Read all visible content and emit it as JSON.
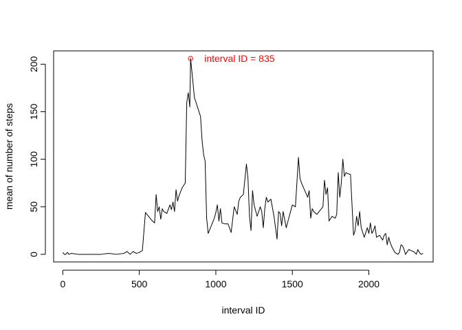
{
  "chart_data": {
    "type": "line",
    "title": "",
    "xlabel": "interval ID",
    "ylabel": "mean of number of steps",
    "xlim": [
      -60,
      2420
    ],
    "ylim": [
      -8,
      214
    ],
    "x_ticks": [
      0,
      500,
      1000,
      1500,
      2000
    ],
    "x_tick_labels": [
      "0",
      "500",
      "1000",
      "1500",
      "2000"
    ],
    "y_ticks": [
      0,
      50,
      100,
      150,
      200
    ],
    "y_tick_labels": [
      "0",
      "50",
      "100",
      "150",
      "200"
    ],
    "grid": false,
    "box": true,
    "line_color": "#000000",
    "series": [
      {
        "x": [
          0,
          10,
          20,
          30,
          40,
          55,
          100,
          150,
          200,
          250,
          300,
          350,
          400,
          420,
          440,
          460,
          480,
          500,
          520,
          540,
          560,
          580,
          600,
          610,
          620,
          630,
          640,
          650,
          660,
          680,
          700,
          710,
          720,
          730,
          740,
          750,
          760,
          780,
          800,
          810,
          820,
          830,
          835,
          845,
          860,
          880,
          900,
          910,
          920,
          930,
          940,
          950,
          970,
          990,
          1000,
          1010,
          1020,
          1030,
          1040,
          1060,
          1080,
          1100,
          1120,
          1140,
          1150,
          1160,
          1180,
          1200,
          1210,
          1220,
          1230,
          1240,
          1250,
          1270,
          1290,
          1300,
          1310,
          1320,
          1330,
          1340,
          1360,
          1380,
          1400,
          1410,
          1420,
          1430,
          1440,
          1460,
          1500,
          1520,
          1540,
          1550,
          1560,
          1600,
          1610,
          1620,
          1630,
          1640,
          1660,
          1680,
          1700,
          1710,
          1720,
          1730,
          1740,
          1760,
          1780,
          1790,
          1800,
          1810,
          1820,
          1830,
          1840,
          1850,
          1860,
          1880,
          1900,
          1910,
          1920,
          1930,
          1940,
          1950,
          1970,
          1990,
          2000,
          2010,
          2020,
          2030,
          2040,
          2050,
          2070,
          2090,
          2100,
          2110,
          2120,
          2130,
          2140,
          2150,
          2160,
          2170,
          2190,
          2200,
          2210,
          2220,
          2230,
          2240,
          2260,
          2290,
          2300,
          2310,
          2320,
          2330,
          2340,
          2355
        ],
        "y": [
          2,
          0,
          0,
          2,
          0,
          1,
          0,
          0,
          0,
          0,
          1,
          0,
          1,
          3,
          0,
          3,
          1,
          2,
          4,
          44,
          40,
          36,
          33,
          63,
          45,
          50,
          37,
          48,
          45,
          43,
          52,
          47,
          55,
          45,
          68,
          56,
          62,
          70,
          75,
          160,
          170,
          155,
          206,
          190,
          165,
          155,
          145,
          120,
          105,
          98,
          38,
          22,
          30,
          38,
          44,
          52,
          35,
          48,
          33,
          32,
          32,
          23,
          50,
          42,
          56,
          60,
          63,
          95,
          80,
          40,
          25,
          67,
          52,
          40,
          50,
          45,
          28,
          48,
          60,
          55,
          58,
          40,
          16,
          45,
          43,
          30,
          45,
          28,
          52,
          50,
          102,
          80,
          75,
          60,
          67,
          38,
          48,
          45,
          42,
          46,
          50,
          78,
          63,
          70,
          35,
          40,
          38,
          42,
          86,
          60,
          75,
          100,
          82,
          86,
          85,
          84,
          20,
          25,
          40,
          30,
          45,
          28,
          18,
          28,
          22,
          33,
          22,
          25,
          30,
          18,
          20,
          15,
          20,
          22,
          10,
          18,
          12,
          8,
          5,
          2,
          0,
          2,
          10,
          9,
          5,
          0,
          5,
          3,
          2,
          0,
          5,
          2,
          0,
          1
        ]
      }
    ],
    "annotations": [
      {
        "x": 835,
        "y": 206,
        "label": "interval ID = 835",
        "color": "#ff0000",
        "marker": "open-circle"
      }
    ]
  }
}
